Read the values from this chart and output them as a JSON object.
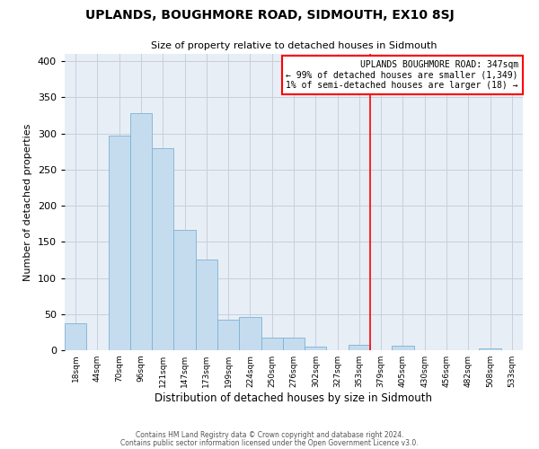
{
  "title": "UPLANDS, BOUGHMORE ROAD, SIDMOUTH, EX10 8SJ",
  "subtitle": "Size of property relative to detached houses in Sidmouth",
  "xlabel": "Distribution of detached houses by size in Sidmouth",
  "ylabel": "Number of detached properties",
  "footer_line1": "Contains HM Land Registry data © Crown copyright and database right 2024.",
  "footer_line2": "Contains public sector information licensed under the Open Government Licence v3.0.",
  "bin_labels": [
    "18sqm",
    "44sqm",
    "70sqm",
    "96sqm",
    "121sqm",
    "147sqm",
    "173sqm",
    "199sqm",
    "224sqm",
    "250sqm",
    "276sqm",
    "302sqm",
    "327sqm",
    "353sqm",
    "379sqm",
    "405sqm",
    "430sqm",
    "456sqm",
    "482sqm",
    "508sqm",
    "533sqm"
  ],
  "bar_heights": [
    37,
    0,
    297,
    328,
    280,
    167,
    125,
    42,
    46,
    17,
    17,
    5,
    0,
    7,
    0,
    6,
    0,
    0,
    0,
    2,
    0
  ],
  "bar_color": "#c5dcef",
  "bar_edge_color": "#7ab3d4",
  "property_line_x": 13.5,
  "annotation_title": "UPLANDS BOUGHMORE ROAD: 347sqm",
  "annotation_line1": "← 99% of detached houses are smaller (1,349)",
  "annotation_line2": "1% of semi-detached houses are larger (18) →",
  "line_color": "red",
  "ylim": [
    0,
    410
  ],
  "yticks": [
    0,
    50,
    100,
    150,
    200,
    250,
    300,
    350,
    400
  ],
  "ax_facecolor": "#e8eef5",
  "background_color": "#ffffff",
  "grid_color": "#c8d0dc"
}
